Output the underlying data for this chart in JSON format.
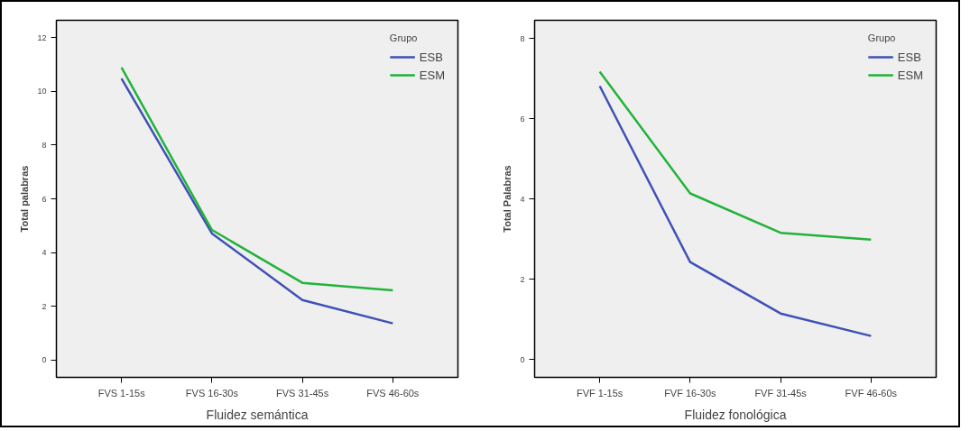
{
  "chart_data": [
    {
      "type": "line",
      "title": "Fluidez semántica",
      "ylabel": "Total palabras",
      "legend_title": "Grupo",
      "legend": "top right",
      "grid": false,
      "categories": [
        "FVS 1-15s",
        "FVS 16-30s",
        "FVS 31-45s",
        "FVS 46-60s"
      ],
      "ylim": [
        -0.65,
        12.65
      ],
      "yticks": [
        0,
        2,
        4,
        6,
        8,
        10,
        12
      ],
      "series": [
        {
          "name": "ESB",
          "color": "#3f51b5",
          "values": [
            10.48,
            4.71,
            2.23,
            1.36
          ]
        },
        {
          "name": "ESM",
          "color": "#22b33a",
          "values": [
            10.89,
            4.84,
            2.87,
            2.59
          ]
        }
      ]
    },
    {
      "type": "line",
      "title": "Fluidez fonológica",
      "ylabel": "Total Palabras",
      "legend_title": "Grupo",
      "legend": "top right",
      "grid": false,
      "categories": [
        "FVF 1-15s",
        "FVF 16-30s",
        "FVF 31-45s",
        "FVF 46-60s"
      ],
      "ylim": [
        -0.44,
        8.45
      ],
      "yticks": [
        0,
        2,
        4,
        6,
        8
      ],
      "series": [
        {
          "name": "ESB",
          "color": "#3f51b5",
          "values": [
            6.81,
            2.43,
            1.15,
            0.59
          ]
        },
        {
          "name": "ESM",
          "color": "#22b33a",
          "values": [
            7.17,
            4.14,
            3.16,
            2.99
          ]
        }
      ]
    }
  ]
}
